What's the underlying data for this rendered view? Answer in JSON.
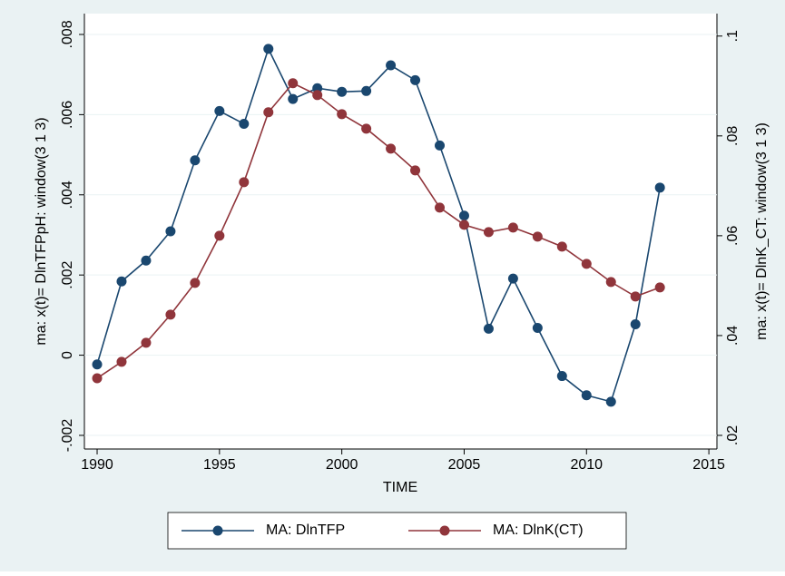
{
  "chart_data": {
    "type": "line",
    "xlabel": "TIME",
    "ylabel": "ma: x(t)= DlnTFPpH: window(3 1 3)",
    "y2label": "ma: x(t)= DlnK_CT: window(3 1 3)",
    "x": [
      1990,
      1991,
      1992,
      1993,
      1994,
      1995,
      1996,
      1997,
      1998,
      1999,
      2000,
      2001,
      2002,
      2003,
      2004,
      2005,
      2006,
      2007,
      2008,
      2009,
      2010,
      2011,
      2012,
      2013
    ],
    "xlim": [
      1989.48,
      2015.33
    ],
    "xticks": [
      1990,
      1995,
      2000,
      2005,
      2010,
      2015
    ],
    "ylim": [
      -0.00234,
      0.00852
    ],
    "yticks": [
      {
        "value": -0.002,
        "label": "-.002"
      },
      0,
      {
        "value": 0.002,
        "label": ".002"
      },
      {
        "value": 0.004,
        "label": ".004"
      },
      {
        "value": 0.006,
        "label": ".006"
      },
      {
        "value": 0.008,
        "label": ".008"
      }
    ],
    "y2lim": [
      0.01727,
      0.1045
    ],
    "y2ticks": [
      {
        "value": 0.02,
        "label": ".02"
      },
      {
        "value": 0.04,
        "label": ".04"
      },
      {
        "value": 0.06,
        "label": ".06"
      },
      {
        "value": 0.08,
        "label": ".08"
      },
      {
        "value": 0.1,
        "label": ".1"
      }
    ],
    "grid": true,
    "legend": "bottom",
    "series": [
      {
        "name": "MA: DlnTFP",
        "color": "#1a476f",
        "axis": "y",
        "values": [
          -0.00023,
          0.00184,
          0.00236,
          0.00309,
          0.00486,
          0.00609,
          0.00577,
          0.00764,
          0.00639,
          0.00666,
          0.00657,
          0.00659,
          0.00723,
          0.00686,
          0.00523,
          0.00348,
          0.00066,
          0.00191,
          0.00068,
          -0.00052,
          -0.001,
          -0.00116,
          0.00077,
          0.00418
        ]
      },
      {
        "name": "MA: DlnK(CT)",
        "color": "#90353b",
        "axis": "y2",
        "values": [
          0.03145,
          0.03473,
          0.03855,
          0.04418,
          0.05055,
          0.06,
          0.07073,
          0.08473,
          0.09055,
          0.08818,
          0.08436,
          0.08145,
          0.07745,
          0.07309,
          0.06564,
          0.06218,
          0.06073,
          0.06164,
          0.05982,
          0.05782,
          0.05436,
          0.05073,
          0.04782,
          0.04964
        ]
      }
    ]
  }
}
